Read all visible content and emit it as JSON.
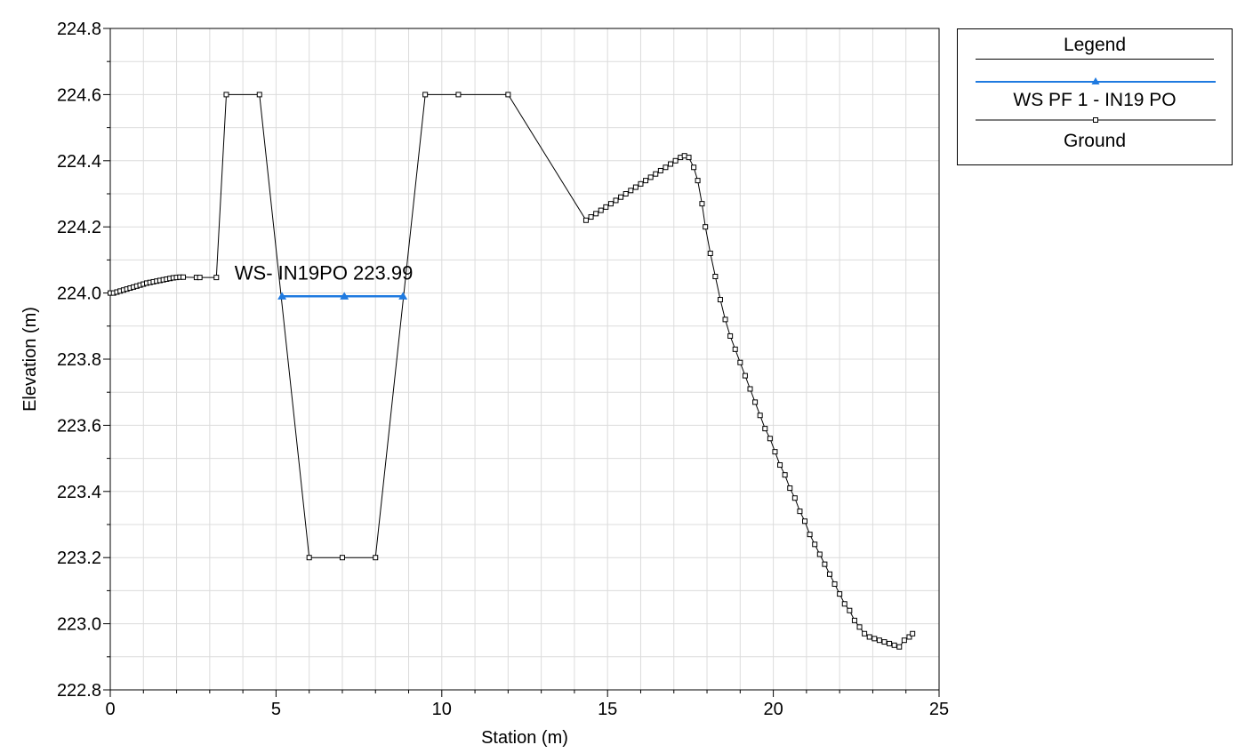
{
  "chart_data": {
    "type": "line",
    "xlabel": "Station (m)",
    "ylabel": "Elevation (m)",
    "xlim": [
      0,
      25
    ],
    "ylim": [
      222.8,
      224.8
    ],
    "x_ticks": [
      "0",
      "5",
      "10",
      "15",
      "20",
      "25"
    ],
    "y_ticks": [
      "222.8",
      "223.0",
      "223.2",
      "223.4",
      "223.6",
      "223.8",
      "224.0",
      "224.2",
      "224.4",
      "224.6",
      "224.8"
    ],
    "grid": true,
    "legend_position": "outside-top-right",
    "legend": {
      "title": "Legend",
      "entries": [
        "WS PF 1 - IN19 PO",
        "Ground"
      ]
    },
    "annotation": "WS- IN19PO 223.99",
    "series": [
      {
        "name": "WS PF 1 - IN19 PO",
        "color": "#1f7ae0",
        "marker": "triangle",
        "x": [
          5.18,
          7.06,
          8.83
        ],
        "y": [
          223.99,
          223.99,
          223.99
        ]
      },
      {
        "name": "Ground",
        "color": "#000000",
        "marker": "square",
        "x": [
          0.0,
          0.1,
          0.2,
          0.3,
          0.4,
          0.5,
          0.6,
          0.7,
          0.8,
          0.9,
          1.0,
          1.1,
          1.2,
          1.3,
          1.4,
          1.5,
          1.6,
          1.7,
          1.8,
          1.9,
          2.0,
          2.1,
          2.2,
          2.6,
          2.7,
          3.2,
          3.5,
          4.5,
          6.0,
          7.0,
          8.0,
          9.5,
          10.5,
          12.0,
          14.35,
          14.5,
          14.65,
          14.8,
          14.95,
          15.1,
          15.25,
          15.4,
          15.55,
          15.7,
          15.85,
          16.0,
          16.15,
          16.3,
          16.45,
          16.6,
          16.75,
          16.9,
          17.05,
          17.2,
          17.32,
          17.45,
          17.6,
          17.72,
          17.85,
          17.95,
          18.1,
          18.25,
          18.4,
          18.55,
          18.7,
          18.85,
          19.0,
          19.15,
          19.3,
          19.45,
          19.6,
          19.75,
          19.9,
          20.05,
          20.2,
          20.35,
          20.5,
          20.65,
          20.8,
          20.95,
          21.1,
          21.25,
          21.4,
          21.55,
          21.7,
          21.85,
          22.0,
          22.15,
          22.3,
          22.45,
          22.6,
          22.75,
          22.9,
          23.05,
          23.2,
          23.35,
          23.5,
          23.65,
          23.8,
          23.95,
          24.1,
          24.2
        ],
        "y": [
          224.0,
          224.0,
          224.003,
          224.006,
          224.009,
          224.012,
          224.015,
          224.018,
          224.021,
          224.024,
          224.027,
          224.03,
          224.032,
          224.034,
          224.036,
          224.038,
          224.04,
          224.042,
          224.044,
          224.046,
          224.047,
          224.048,
          224.048,
          224.047,
          224.047,
          224.047,
          224.6,
          224.6,
          223.2,
          223.2,
          223.2,
          224.6,
          224.6,
          224.6,
          224.22,
          224.23,
          224.24,
          224.25,
          224.26,
          224.27,
          224.28,
          224.29,
          224.3,
          224.31,
          224.32,
          224.33,
          224.34,
          224.35,
          224.36,
          224.37,
          224.38,
          224.39,
          224.4,
          224.41,
          224.415,
          224.41,
          224.38,
          224.34,
          224.27,
          224.2,
          224.12,
          224.05,
          223.98,
          223.92,
          223.87,
          223.83,
          223.79,
          223.75,
          223.71,
          223.67,
          223.63,
          223.59,
          223.56,
          223.52,
          223.48,
          223.45,
          223.41,
          223.38,
          223.34,
          223.31,
          223.27,
          223.24,
          223.21,
          223.18,
          223.15,
          223.12,
          223.09,
          223.06,
          223.04,
          223.01,
          222.99,
          222.97,
          222.96,
          222.955,
          222.95,
          222.945,
          222.94,
          222.935,
          222.93,
          222.95,
          222.96,
          222.97
        ]
      }
    ]
  }
}
